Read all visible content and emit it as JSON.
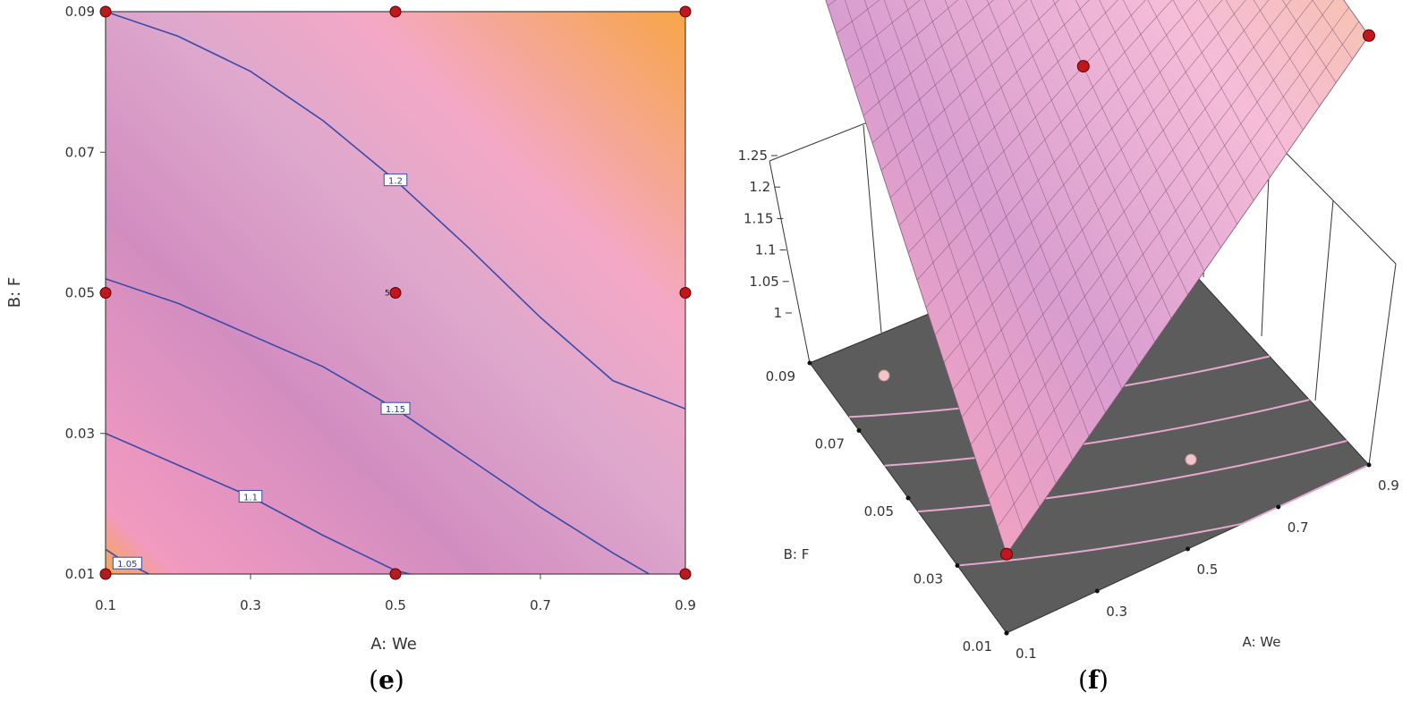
{
  "panels": [
    {
      "id": "e",
      "label_open": "(",
      "label_letter": "e",
      "label_close": ")"
    },
    {
      "id": "f",
      "label_open": "(",
      "label_letter": "f",
      "label_close": ")"
    }
  ],
  "colors": {
    "low": "#f7a94d",
    "mid": "#d48cbf",
    "high_pink": "#f2a6c9",
    "contour": "#3a4aa8",
    "point": "#c0161c",
    "floor": "#5b5b5b"
  },
  "chart_data": [
    {
      "type": "contour",
      "xlabel": "A: We",
      "ylabel": "B: F",
      "xlim": [
        0.1,
        0.9
      ],
      "ylim": [
        0.01,
        0.09
      ],
      "x_ticks": [
        "0.1",
        "0.3",
        "0.5",
        "0.7",
        "0.9"
      ],
      "y_ticks": [
        "0.01",
        "0.03",
        "0.05",
        "0.07",
        "0.09"
      ],
      "contours": [
        {
          "level": "1.05",
          "points": [
            [
              0.1,
              0.0135
            ],
            [
              0.13,
              0.0115
            ],
            [
              0.16,
              0.01
            ]
          ]
        },
        {
          "level": "1.1",
          "points": [
            [
              0.1,
              0.03
            ],
            [
              0.2,
              0.0255
            ],
            [
              0.3,
              0.021
            ],
            [
              0.4,
              0.0155
            ],
            [
              0.5,
              0.0105
            ],
            [
              0.52,
              0.01
            ]
          ]
        },
        {
          "level": "1.15",
          "points": [
            [
              0.1,
              0.052
            ],
            [
              0.2,
              0.0485
            ],
            [
              0.3,
              0.044
            ],
            [
              0.4,
              0.0395
            ],
            [
              0.5,
              0.0335
            ],
            [
              0.6,
              0.0265
            ],
            [
              0.7,
              0.0195
            ],
            [
              0.8,
              0.013
            ],
            [
              0.85,
              0.01
            ]
          ]
        },
        {
          "level": "1.2",
          "points": [
            [
              0.1,
              0.09
            ],
            [
              0.2,
              0.0865
            ],
            [
              0.3,
              0.0815
            ],
            [
              0.4,
              0.0745
            ],
            [
              0.5,
              0.066
            ],
            [
              0.6,
              0.0565
            ],
            [
              0.7,
              0.0465
            ],
            [
              0.8,
              0.0375
            ],
            [
              0.9,
              0.0335
            ]
          ]
        }
      ],
      "design_points": [
        {
          "x": 0.1,
          "y": 0.09
        },
        {
          "x": 0.5,
          "y": 0.09
        },
        {
          "x": 0.9,
          "y": 0.09
        },
        {
          "x": 0.1,
          "y": 0.05
        },
        {
          "x": 0.5,
          "y": 0.05,
          "count": "5"
        },
        {
          "x": 0.9,
          "y": 0.05
        },
        {
          "x": 0.1,
          "y": 0.01
        },
        {
          "x": 0.5,
          "y": 0.01
        },
        {
          "x": 0.9,
          "y": 0.01
        }
      ]
    },
    {
      "type": "surface3d",
      "xlabel": "A: We",
      "ylabel": "B: F",
      "x_ticks": [
        "0.1",
        "0.3",
        "0.5",
        "0.7",
        "0.9"
      ],
      "y_ticks": [
        "0.01",
        "0.03",
        "0.05",
        "0.07",
        "0.09"
      ],
      "z_ticks": [
        "1",
        "1.05",
        "1.1",
        "1.15",
        "1.2",
        "1.25"
      ],
      "zlim": [
        1,
        1.25
      ],
      "corner_values": {
        "a0b0": 1.0,
        "a1b0": 1.2,
        "a0b1": 1.19,
        "a1b1": 1.24
      }
    }
  ]
}
